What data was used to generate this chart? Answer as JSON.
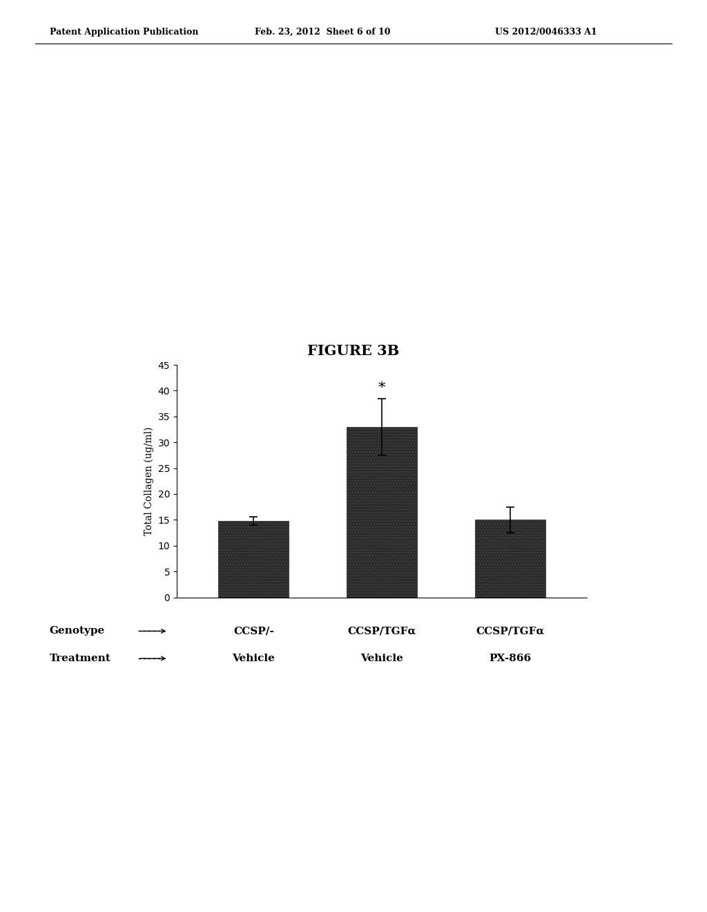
{
  "title": "FIGURE 3B",
  "header_left": "Patent Application Publication",
  "header_mid": "Feb. 23, 2012  Sheet 6 of 10",
  "header_right": "US 2012/0046333 A1",
  "bar_values": [
    14.8,
    33.0,
    15.0
  ],
  "bar_errors": [
    0.8,
    5.5,
    2.5
  ],
  "bar_positions": [
    1,
    2,
    3
  ],
  "bar_color": "#2a2a2a",
  "bar_hatch": "....",
  "bar_width": 0.55,
  "ylabel": "Total Collagen (ug/ml)",
  "ylim": [
    0,
    45
  ],
  "yticks": [
    0,
    5,
    10,
    15,
    20,
    25,
    30,
    35,
    40,
    45
  ],
  "xlim": [
    0.4,
    3.6
  ],
  "star_bar": 1,
  "star_text": "*",
  "genotype_labels": [
    "CCSP/-",
    "CCSP/TGFα",
    "CCSP/TGFα"
  ],
  "treatment_labels": [
    "Vehicle",
    "Vehicle",
    "PX-866"
  ],
  "row_label_genotype": "Genotype",
  "row_label_treatment": "Treatment",
  "background_color": "#ffffff",
  "font_color": "#000000",
  "title_fontsize": 15,
  "axis_label_fontsize": 10,
  "tick_fontsize": 10,
  "header_fontsize": 9,
  "col_label_fontsize": 11
}
